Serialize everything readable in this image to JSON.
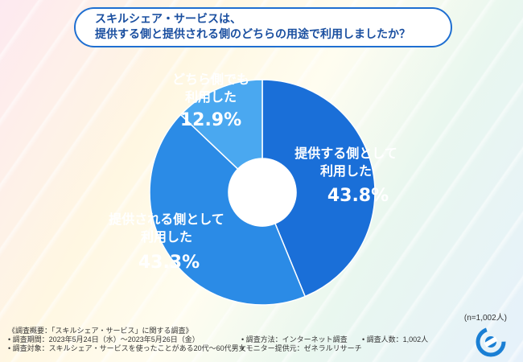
{
  "title": {
    "line1": "スキルシェア・サービスは、",
    "line2": "提供する側と提供される側のどちらの用途で利用しましたか？"
  },
  "chart_data": {
    "type": "pie",
    "style": "donut",
    "title": "スキルシェア・サービスは、提供する側と提供される側のどちらの用途で利用しましたか？",
    "slices": [
      {
        "label_lines": [
          "提供する側として",
          "利用した"
        ],
        "value": 43.8,
        "display": "43.8%",
        "color": "#1a6fd8"
      },
      {
        "label_lines": [
          "提供される側として",
          "利用した"
        ],
        "value": 43.3,
        "display": "43.3%",
        "color": "#2b8be6"
      },
      {
        "label_lines": [
          "どちら側でも",
          "利用した"
        ],
        "value": 12.9,
        "display": "12.9%",
        "color": "#4aa8f0"
      }
    ],
    "n_label": "(n=1,002人)"
  },
  "footnotes": {
    "survey_title": "《調査概要：「スキルシェア・サービス」に関する調査》",
    "period": "• 調査期間：2023年5月24日（水）～2023年5月26日（金）",
    "target": "• 調査対象：スキルシェア・サービスを使ったことがある20代～60代男女",
    "method": "• 調査方法：インターネット調査",
    "monitor": "• モニター提供元：ゼネラルリサーチ",
    "respondents": "• 調査人数：1,002人"
  },
  "logo": {
    "icon": "company-logo-icon",
    "color": "#1a7fd4"
  }
}
